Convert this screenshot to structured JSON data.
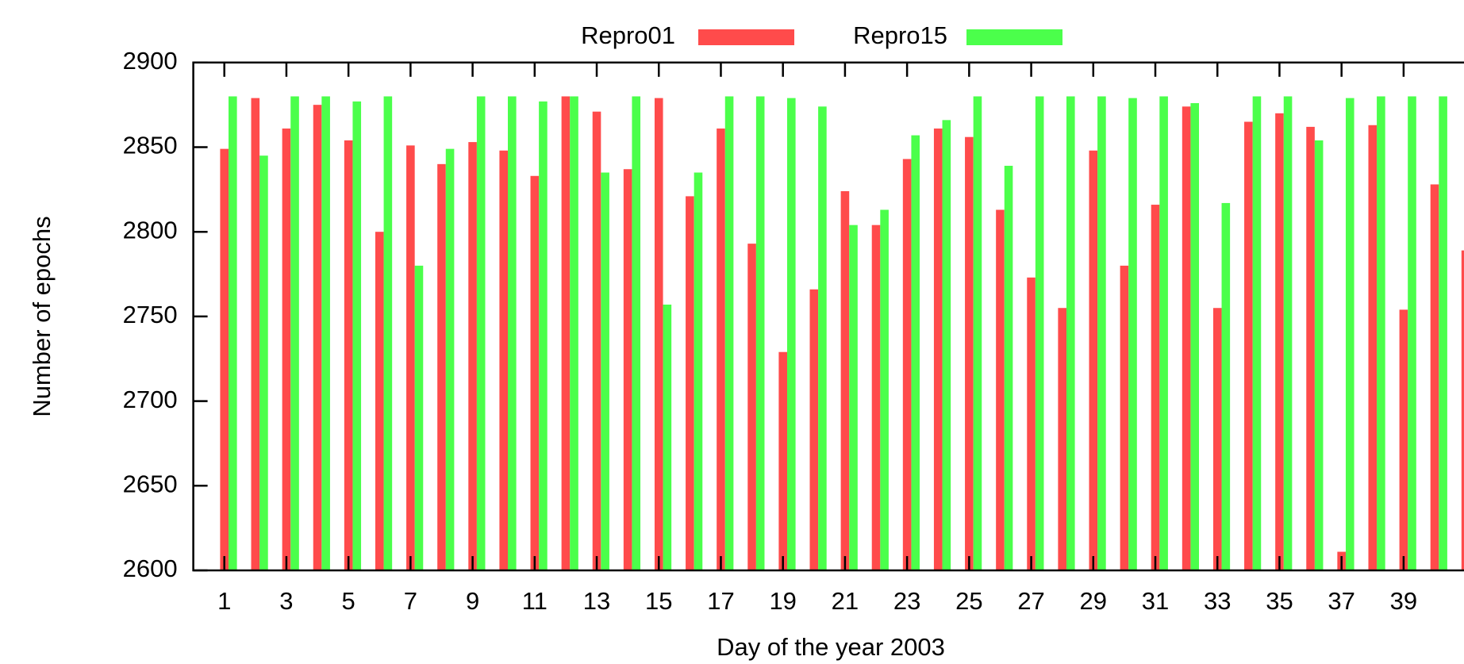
{
  "chart_data": {
    "type": "bar",
    "xlabel": "Day of the year 2003",
    "ylabel": "Number of epochs",
    "categories": [
      1,
      null,
      3,
      null,
      5,
      null,
      7,
      null,
      9,
      null,
      11,
      null,
      13,
      null,
      15,
      null,
      17,
      null,
      19,
      null,
      21,
      null,
      23,
      null,
      25,
      null,
      27,
      null,
      29,
      null,
      31,
      null,
      33,
      null,
      35,
      null,
      37,
      null,
      39,
      null,
      null
    ],
    "series": [
      {
        "name": "Repro01",
        "color": "#ff4b4b",
        "values": [
          2849,
          2879,
          2861,
          2875,
          2854,
          2800,
          2851,
          2840,
          2853,
          2848,
          2833,
          2880,
          2871,
          2837,
          2879,
          2821,
          2861,
          2793,
          2729,
          2766,
          2824,
          2804,
          2843,
          2861,
          2856,
          2813,
          2773,
          2755,
          2848,
          2780,
          2816,
          2874,
          2755,
          2865,
          2870,
          2862,
          2611,
          2863,
          2754,
          2828,
          2789
        ]
      },
      {
        "name": "Repro15",
        "color": "#4bff4b",
        "values": [
          2880,
          2845,
          2880,
          2880,
          2877,
          2880,
          2780,
          2849,
          2880,
          2880,
          2877,
          2880,
          2835,
          2880,
          2757,
          2835,
          2880,
          2880,
          2879,
          2874,
          2804,
          2813,
          2857,
          2866,
          2880,
          2839,
          2880,
          2880,
          2880,
          2879,
          2880,
          2876,
          2817,
          2880,
          2880,
          2854,
          2879,
          2880,
          2880,
          2880,
          null
        ]
      }
    ],
    "ylim": [
      2600,
      2900
    ],
    "yticks": [
      2600,
      2650,
      2700,
      2750,
      2800,
      2850,
      2900
    ],
    "legend": "top",
    "grid": false
  }
}
